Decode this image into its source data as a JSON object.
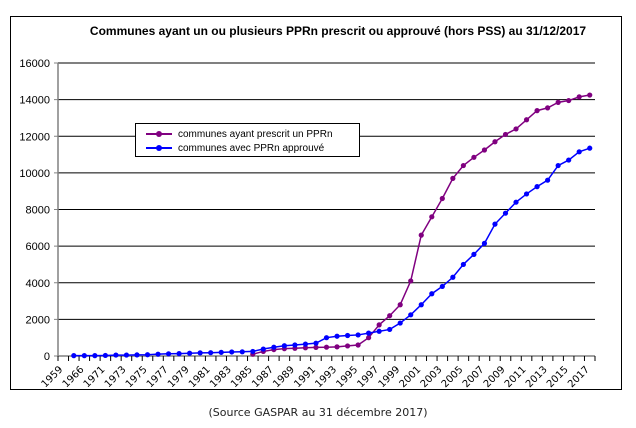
{
  "chart_data": {
    "type": "line",
    "title": "Communes ayant un ou plusieurs PPRn prescrit ou approuvé (hors PSS) au 31/12/2017",
    "xlabel": "",
    "ylabel": "",
    "ylim": [
      0,
      16000
    ],
    "yticks": [
      0,
      2000,
      4000,
      6000,
      8000,
      10000,
      12000,
      14000,
      16000
    ],
    "grid": true,
    "legend_position": "upper-left",
    "categories": [
      "1959",
      "1965",
      "1966",
      "1970",
      "1971",
      "1972",
      "1973",
      "1974",
      "1975",
      "1976",
      "1977",
      "1978",
      "1979",
      "1980",
      "1981",
      "1982",
      "1983",
      "1984",
      "1985",
      "1986",
      "1987",
      "1988",
      "1989",
      "1990",
      "1991",
      "1992",
      "1993",
      "1994",
      "1995",
      "1996",
      "1997",
      "1998",
      "1999",
      "2000",
      "2001",
      "2002",
      "2003",
      "2004",
      "2005",
      "2006",
      "2007",
      "2008",
      "2009",
      "2010",
      "2011",
      "2012",
      "2013",
      "2014",
      "2015",
      "2016",
      "2017"
    ],
    "series": [
      {
        "name": "communes ayant prescrit un PPRn",
        "color": "#800080",
        "values": [
          null,
          null,
          null,
          null,
          null,
          null,
          null,
          null,
          null,
          null,
          null,
          null,
          null,
          null,
          null,
          null,
          null,
          null,
          100,
          250,
          350,
          400,
          420,
          450,
          470,
          480,
          500,
          550,
          600,
          1000,
          1700,
          2200,
          2800,
          4100,
          6600,
          7600,
          8600,
          9700,
          10400,
          10850,
          11250,
          11700,
          12100,
          12400,
          12900,
          13400,
          13550,
          13850,
          13950,
          14150,
          14250
        ]
      },
      {
        "name": "communes avec PPRn approuvé",
        "color": "#0000ff",
        "values": [
          null,
          20,
          20,
          20,
          30,
          50,
          50,
          60,
          70,
          100,
          120,
          130,
          150,
          170,
          180,
          200,
          220,
          230,
          250,
          380,
          480,
          560,
          600,
          650,
          700,
          1000,
          1080,
          1120,
          1150,
          1250,
          1350,
          1450,
          1800,
          2250,
          2800,
          3400,
          3800,
          4300,
          5000,
          5550,
          6150,
          7200,
          7800,
          8400,
          8850,
          9250,
          9600,
          10400,
          10700,
          11150,
          11350
        ]
      }
    ]
  },
  "source_note": "(Source GASPAR au 31 décembre 2017)"
}
